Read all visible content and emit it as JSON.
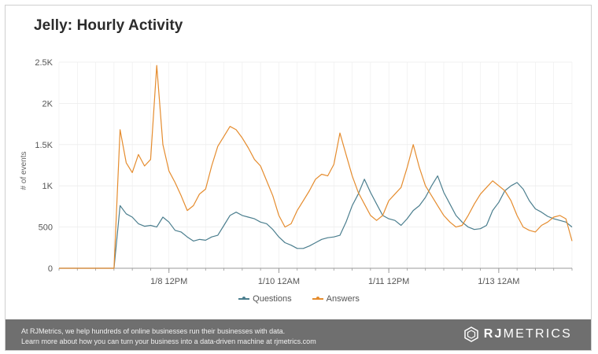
{
  "header": {
    "title": "Jelly: Hourly Activity"
  },
  "colors": {
    "questions": "#4b7e8e",
    "answers": "#e58c2e",
    "grid": "#ececec",
    "axis": "#9a9a9a",
    "footer_bg": "#6f6f6f"
  },
  "footer": {
    "line1": "At RJMetrics, we help hundreds of online businesses run their businesses with data.",
    "line2": "Learn more about how you can turn your business into a data-driven machine at rjmetrics.com",
    "brand_left": "RJ",
    "brand_right": "METRICS",
    "logo_icon": "rjmetrics-hexagon-logo-icon"
  },
  "chart_data": {
    "type": "line",
    "title": "Jelly: Hourly Activity",
    "xlabel": "",
    "ylabel": "# of events",
    "ylim": [
      0,
      2500
    ],
    "yticks": [
      0,
      500,
      1000,
      1500,
      2000,
      2500
    ],
    "ytick_labels": [
      "0",
      "500",
      "1K",
      "1.5K",
      "2K",
      "2.5K"
    ],
    "x_tick_labels": [
      "1/8 12PM",
      "1/10 12AM",
      "1/11 12PM",
      "1/13 12AM"
    ],
    "x_tick_hours": [
      36,
      72,
      108,
      144
    ],
    "x_range_hours": [
      0,
      168
    ],
    "legend_position": "bottom",
    "grid": true,
    "series": [
      {
        "name": "Questions",
        "x_hours": [
          0,
          2,
          4,
          6,
          8,
          10,
          12,
          14,
          16,
          18,
          20,
          22,
          24,
          26,
          28,
          30,
          32,
          34,
          36,
          38,
          40,
          42,
          44,
          46,
          48,
          50,
          52,
          54,
          56,
          58,
          60,
          62,
          64,
          66,
          68,
          70,
          72,
          74,
          76,
          78,
          80,
          82,
          84,
          86,
          88,
          90,
          92,
          94,
          96,
          98,
          100,
          102,
          104,
          106,
          108,
          110,
          112,
          114,
          116,
          118,
          120,
          122,
          124,
          126,
          128,
          130,
          132,
          134,
          136,
          138,
          140,
          142,
          144,
          146,
          148,
          150,
          152,
          154,
          156,
          158,
          160,
          162,
          164,
          166,
          168
        ],
        "values": [
          0,
          0,
          0,
          0,
          0,
          0,
          0,
          0,
          0,
          0,
          760,
          660,
          620,
          540,
          510,
          520,
          500,
          620,
          560,
          460,
          440,
          380,
          330,
          350,
          340,
          380,
          400,
          520,
          640,
          680,
          640,
          620,
          600,
          560,
          540,
          470,
          380,
          310,
          280,
          240,
          240,
          270,
          310,
          350,
          370,
          380,
          400,
          560,
          760,
          900,
          1080,
          920,
          780,
          640,
          600,
          580,
          520,
          600,
          700,
          760,
          860,
          1000,
          1120,
          920,
          780,
          640,
          560,
          500,
          470,
          480,
          520,
          700,
          800,
          940,
          1000,
          1040,
          960,
          820,
          720,
          680,
          630,
          600,
          580,
          560,
          500
        ]
      },
      {
        "name": "Answers",
        "x_hours": [
          0,
          2,
          4,
          6,
          8,
          10,
          12,
          14,
          16,
          18,
          20,
          22,
          24,
          26,
          28,
          30,
          32,
          34,
          36,
          38,
          40,
          42,
          44,
          46,
          48,
          50,
          52,
          54,
          56,
          58,
          60,
          62,
          64,
          66,
          68,
          70,
          72,
          74,
          76,
          78,
          80,
          82,
          84,
          86,
          88,
          90,
          92,
          94,
          96,
          98,
          100,
          102,
          104,
          106,
          108,
          110,
          112,
          114,
          116,
          118,
          120,
          122,
          124,
          126,
          128,
          130,
          132,
          134,
          136,
          138,
          140,
          142,
          144,
          146,
          148,
          150,
          152,
          154,
          156,
          158,
          160,
          162,
          164,
          166,
          168
        ],
        "values": [
          0,
          0,
          0,
          0,
          0,
          0,
          0,
          0,
          0,
          0,
          1680,
          1280,
          1160,
          1380,
          1240,
          1320,
          2460,
          1500,
          1180,
          1040,
          880,
          700,
          760,
          900,
          960,
          1240,
          1480,
          1600,
          1720,
          1680,
          1580,
          1460,
          1320,
          1240,
          1060,
          880,
          640,
          500,
          540,
          700,
          820,
          940,
          1080,
          1140,
          1120,
          1260,
          1640,
          1380,
          1120,
          920,
          780,
          640,
          580,
          640,
          820,
          900,
          980,
          1220,
          1500,
          1220,
          1000,
          880,
          760,
          640,
          560,
          500,
          520,
          640,
          780,
          900,
          980,
          1060,
          1000,
          940,
          820,
          640,
          500,
          460,
          440,
          520,
          560,
          620,
          640,
          600,
          330
        ]
      }
    ]
  }
}
